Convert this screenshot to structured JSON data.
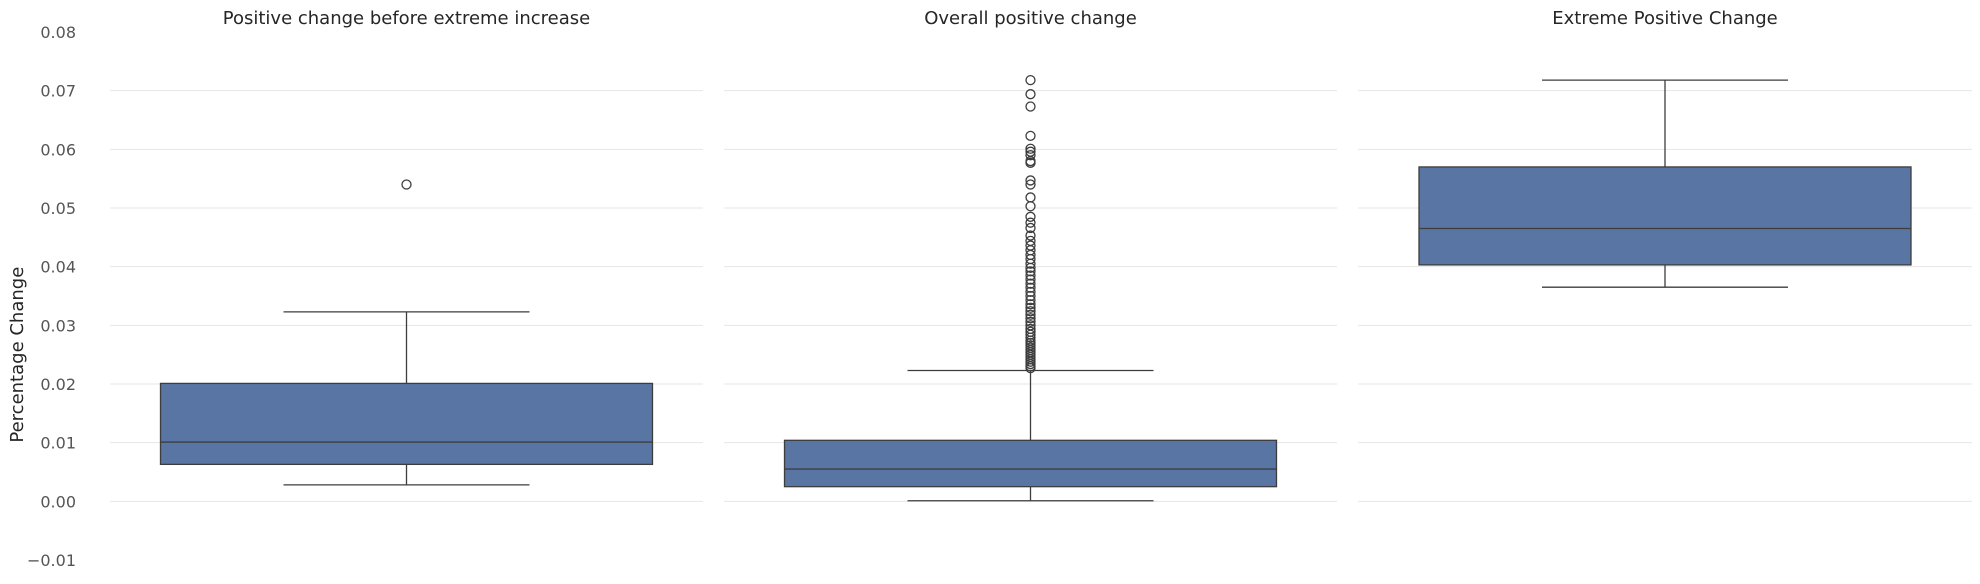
{
  "colors": {
    "box_fill": "#5875a4",
    "line": "#3d3d3d",
    "grid": "#e6e6e6",
    "tick_text": "#555555"
  },
  "chart_data": {
    "type": "box",
    "ylabel": "Percentage Change",
    "ylim": [
      -0.01,
      0.08
    ],
    "yticks": [
      -0.01,
      0.0,
      0.01,
      0.02,
      0.03,
      0.04,
      0.05,
      0.06,
      0.07,
      0.08
    ],
    "ytick_labels": [
      "−0.01",
      "0.00",
      "0.01",
      "0.02",
      "0.03",
      "0.04",
      "0.05",
      "0.06",
      "0.07",
      "0.08"
    ],
    "grid": "horizontal",
    "sharey": true,
    "panels": [
      {
        "title": "Positive change before extreme increase",
        "whisker_low": 0.0028,
        "q1": 0.0063,
        "median": 0.0101,
        "q3": 0.0201,
        "whisker_high": 0.0323,
        "outliers": [
          0.054
        ]
      },
      {
        "title": "Overall positive change",
        "whisker_low": 0.0001,
        "q1": 0.0025,
        "median": 0.0055,
        "q3": 0.0104,
        "whisker_high": 0.0223,
        "outliers": [
          0.0718,
          0.0694,
          0.0673,
          0.0623,
          0.0601,
          0.0596,
          0.059,
          0.058,
          0.0577,
          0.0547,
          0.054,
          0.0518,
          0.0503,
          0.0485,
          0.0475,
          0.0466,
          0.0453,
          0.0444,
          0.0436,
          0.0428,
          0.042,
          0.0413,
          0.0405,
          0.0398,
          0.0392,
          0.0385,
          0.0378,
          0.0371,
          0.0364,
          0.0357,
          0.035,
          0.0343,
          0.0336,
          0.033,
          0.0324,
          0.0318,
          0.0312,
          0.0306,
          0.03,
          0.0294,
          0.0289,
          0.0284,
          0.0279,
          0.0274,
          0.027,
          0.0266,
          0.0262,
          0.0258,
          0.0254,
          0.025,
          0.0246,
          0.0242,
          0.0238,
          0.0234,
          0.023,
          0.0227
        ]
      },
      {
        "title": "Extreme Positive Change",
        "whisker_low": 0.0365,
        "q1": 0.0403,
        "median": 0.0465,
        "q3": 0.057,
        "whisker_high": 0.0718,
        "outliers": []
      }
    ]
  }
}
